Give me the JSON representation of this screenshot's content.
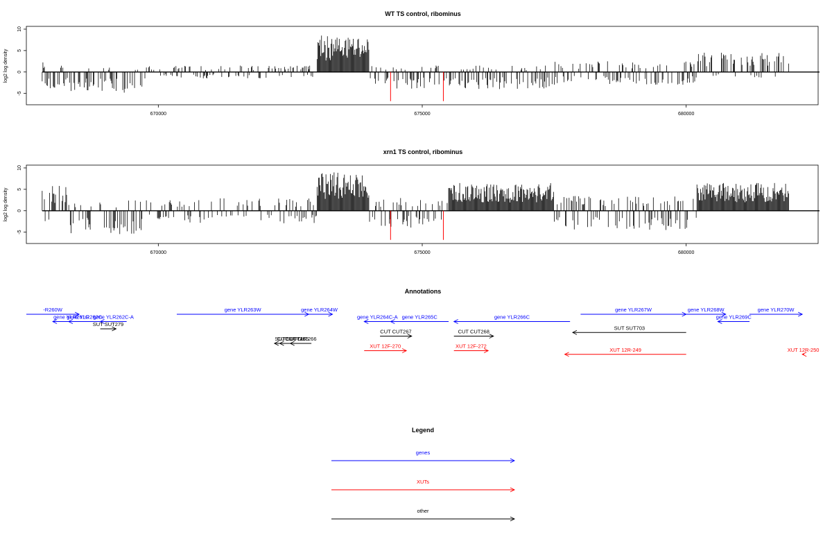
{
  "chart_data": [
    {
      "type": "bar",
      "title": "WT TS control, ribominus",
      "ylabel": "log2 log density",
      "xlim": [
        667500,
        682500
      ],
      "ylim": [
        -7,
        10
      ],
      "yticks": [
        10,
        5,
        0,
        -5
      ],
      "xticks": [
        670000,
        675000,
        680000
      ],
      "xtick_labels": [
        "670000",
        "675000",
        "680000"
      ],
      "highlight_lines": [
        {
          "x": 674400,
          "y": -6.8,
          "color": "#ff0000"
        },
        {
          "x": 675400,
          "y": -6.8,
          "color": "#ff0000"
        }
      ],
      "profile": {
        "seed": 11,
        "x_start": 667800,
        "x_end": 682700,
        "regions": [
          {
            "from": 667800,
            "to": 668300,
            "pos": 2.5,
            "neg": 4.0
          },
          {
            "from": 668300,
            "to": 669000,
            "pos": 1.0,
            "neg": 4.5
          },
          {
            "from": 669000,
            "to": 669700,
            "pos": 1.5,
            "neg": 5.0
          },
          {
            "from": 669700,
            "to": 673000,
            "pos": 1.5,
            "neg": 1.5
          },
          {
            "from": 673000,
            "to": 674000,
            "pos": 8.5,
            "neg": 0.5
          },
          {
            "from": 674000,
            "to": 677500,
            "pos": 1.5,
            "neg": 4.0
          },
          {
            "from": 677500,
            "to": 680200,
            "pos": 2.5,
            "neg": 3.0
          },
          {
            "from": 680200,
            "to": 682700,
            "pos": 4.5,
            "neg": 1.5
          }
        ]
      }
    },
    {
      "type": "bar",
      "title": "xrn1 TS control, ribominus",
      "ylabel": "log2 log density",
      "xlim": [
        667500,
        682500
      ],
      "ylim": [
        -7,
        10
      ],
      "yticks": [
        10,
        5,
        0,
        -5
      ],
      "xticks": [
        670000,
        675000,
        680000
      ],
      "xtick_labels": [
        "670000",
        "675000",
        "680000"
      ],
      "highlight_lines": [
        {
          "x": 674400,
          "y": -6.8,
          "color": "#ff0000"
        },
        {
          "x": 675400,
          "y": -6.8,
          "color": "#ff0000"
        }
      ],
      "profile": {
        "seed": 29,
        "x_start": 667800,
        "x_end": 682700,
        "regions": [
          {
            "from": 667800,
            "to": 668300,
            "pos": 6.0,
            "neg": 2.5
          },
          {
            "from": 668300,
            "to": 669000,
            "pos": 2.0,
            "neg": 5.5
          },
          {
            "from": 669000,
            "to": 669700,
            "pos": 2.5,
            "neg": 5.5
          },
          {
            "from": 669700,
            "to": 673000,
            "pos": 3.0,
            "neg": 3.0
          },
          {
            "from": 673000,
            "to": 674000,
            "pos": 9.0,
            "neg": 0.5
          },
          {
            "from": 674000,
            "to": 675500,
            "pos": 3.0,
            "neg": 4.0
          },
          {
            "from": 675500,
            "to": 677500,
            "pos": 6.5,
            "neg": 6.5
          },
          {
            "from": 677500,
            "to": 680200,
            "pos": 3.5,
            "neg": 4.5
          },
          {
            "from": 680200,
            "to": 682700,
            "pos": 6.5,
            "neg": 2.5
          }
        ]
      }
    }
  ],
  "annotations": {
    "title": "Annotations",
    "items": [
      {
        "label": "-R260W",
        "type": "gene",
        "from": 667450,
        "to": 668500,
        "row": 0,
        "strand": "+"
      },
      {
        "label": "gene YLR262C",
        "type": "gene",
        "from": 668900,
        "to": 668300,
        "row": 1,
        "strand": "-"
      },
      {
        "label": "gene YLR261C",
        "type": "gene",
        "from": 668700,
        "to": 668000,
        "row": 1,
        "strand": "-"
      },
      {
        "label": "gene YLR262C-A",
        "type": "gene",
        "from": 669400,
        "to": 668900,
        "row": 1,
        "strand": "-"
      },
      {
        "label": "gene YLR263W",
        "type": "gene",
        "from": 670350,
        "to": 672850,
        "row": 0,
        "strand": "+"
      },
      {
        "label": "gene YLR264W",
        "type": "gene",
        "from": 672800,
        "to": 673300,
        "row": 0,
        "strand": "+"
      },
      {
        "label": "gene YLR264C-A",
        "type": "gene",
        "from": 674400,
        "to": 673900,
        "row": 1,
        "strand": "-"
      },
      {
        "label": "gene YLR265C",
        "type": "gene",
        "from": 675500,
        "to": 674400,
        "row": 1,
        "strand": "-"
      },
      {
        "label": "gene YLR266C",
        "type": "gene",
        "from": 677800,
        "to": 675600,
        "row": 1,
        "strand": "+_neg"
      },
      {
        "label": "gene YLR267W",
        "type": "gene",
        "from": 678000,
        "to": 680000,
        "row": 0,
        "strand": "+"
      },
      {
        "label": "gene YLR268W",
        "type": "gene",
        "from": 680000,
        "to": 680750,
        "row": 0,
        "strand": "+"
      },
      {
        "label": "gene YLR269C",
        "type": "gene",
        "from": 681200,
        "to": 680600,
        "row": 1,
        "strand": "-"
      },
      {
        "label": "gene YLR270W",
        "type": "gene",
        "from": 681200,
        "to": 682200,
        "row": 0,
        "strand": "+"
      },
      {
        "label": "SUT SUT279",
        "type": "other",
        "from": 668900,
        "to": 669200,
        "row": 2,
        "strand": "+"
      },
      {
        "label": "CUT CUT266",
        "type": "other",
        "from": 672900,
        "to": 672500,
        "row": 4,
        "strand": "-"
      },
      {
        "label": "CUT CUT265",
        "type": "other",
        "from": 672800,
        "to": 672300,
        "row": 4,
        "strand": "-"
      },
      {
        "label": "SUT SUT745",
        "type": "other",
        "from": 672800,
        "to": 672200,
        "row": 4,
        "strand": "-"
      },
      {
        "label": "CUT CUT267",
        "type": "other",
        "from": 674200,
        "to": 674800,
        "row": 3,
        "strand": "+"
      },
      {
        "label": "CUT CUT268",
        "type": "other",
        "from": 675600,
        "to": 676350,
        "row": 3,
        "strand": "+"
      },
      {
        "label": "SUT SUT703",
        "type": "other",
        "from": 680000,
        "to": 677850,
        "row": 2.5,
        "strand": "-"
      },
      {
        "label": "XUT 12F-270",
        "type": "XUT",
        "from": 673900,
        "to": 674700,
        "row": 5,
        "strand": "+"
      },
      {
        "label": "XUT 12F-272",
        "type": "XUT",
        "from": 675600,
        "to": 676250,
        "row": 5,
        "strand": "+"
      },
      {
        "label": "XUT 12R-249",
        "type": "XUT",
        "from": 680000,
        "to": 677700,
        "row": 5.5,
        "strand": "-"
      },
      {
        "label": "XUT 12R-250",
        "type": "XUT",
        "from": 682800,
        "to": 682200,
        "row": 5.5,
        "strand": "-"
      }
    ]
  },
  "legend": {
    "title": "Legend",
    "entries": [
      {
        "label": "genes",
        "color": "#0000ff"
      },
      {
        "label": "XUTs",
        "color": "#ff0000"
      },
      {
        "label": "other",
        "color": "#000000"
      }
    ]
  },
  "colors": {
    "gene": "#0000ff",
    "XUT": "#ff0000",
    "other": "#000000"
  }
}
